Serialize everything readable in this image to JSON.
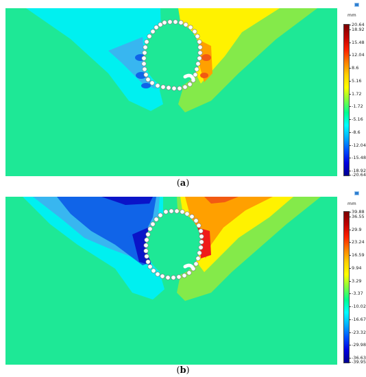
{
  "panels": [
    {
      "id": "a",
      "caption_letter": "a",
      "unit": "mm",
      "ticks": [
        "20.64",
        "18.92",
        "15.48",
        "12.04",
        "8.6",
        "5.16",
        "1.72",
        "-1.72",
        "-5.16",
        "-8.6",
        "-12.04",
        "-15.48",
        "-18.92",
        "-20.64"
      ],
      "colorbar": [
        "#7a0000",
        "#c00000",
        "#ff2000",
        "#ff8000",
        "#ffd000",
        "#ffff00",
        "#80ff40",
        "#00ff90",
        "#00ffff",
        "#00b0ff",
        "#0050ff",
        "#0000e0",
        "#000090"
      ]
    },
    {
      "id": "b",
      "caption_letter": "b",
      "unit": "mm",
      "ticks": [
        "39.88",
        "36.55",
        "29.9",
        "23.24",
        "16.59",
        "9.94",
        "3.29",
        "-3.37",
        "-10.02",
        "-16.67",
        "-23.32",
        "-29.98",
        "-36.63",
        "-39.95"
      ],
      "colorbar": [
        "#7a0000",
        "#c00000",
        "#ff2000",
        "#ff8000",
        "#ffd000",
        "#ffff00",
        "#80ff40",
        "#00ff90",
        "#00ffff",
        "#00b0ff",
        "#0050ff",
        "#0000e0",
        "#000090"
      ]
    }
  ],
  "colors": {
    "background_field": "#1ee896",
    "cyan": "#00f0f0",
    "light_blue": "#38b6f0",
    "blue": "#1064e8",
    "dark_blue": "#0a14c8",
    "light_green": "#84ea4a",
    "yellow": "#fff200",
    "orange": "#ffa000",
    "red": "#f01a1a",
    "piles": "#ffffff"
  }
}
